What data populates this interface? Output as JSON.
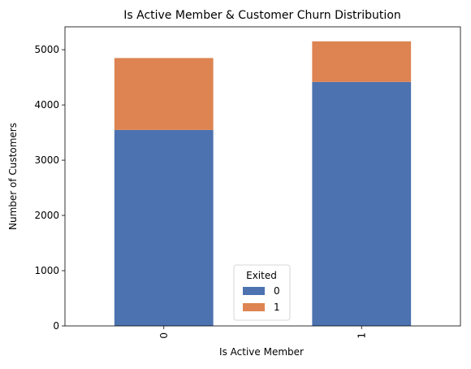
{
  "chart_data": {
    "type": "bar",
    "stacked": true,
    "title": "Is Active Member & Customer Churn Distribution",
    "xlabel": "Is Active Member",
    "ylabel": "Number of Customers",
    "categories": [
      "0",
      "1"
    ],
    "series": [
      {
        "name": "0",
        "values": [
          3547,
          4416
        ],
        "color": "#4c72b0"
      },
      {
        "name": "1",
        "values": [
          1302,
          735
        ],
        "color": "#dd8452"
      }
    ],
    "ylim": [
      0,
      5414
    ],
    "yticks": [
      0,
      1000,
      2000,
      3000,
      4000,
      5000
    ],
    "legend": {
      "title": "Exited",
      "position": "bottom-center"
    },
    "grid": false
  }
}
